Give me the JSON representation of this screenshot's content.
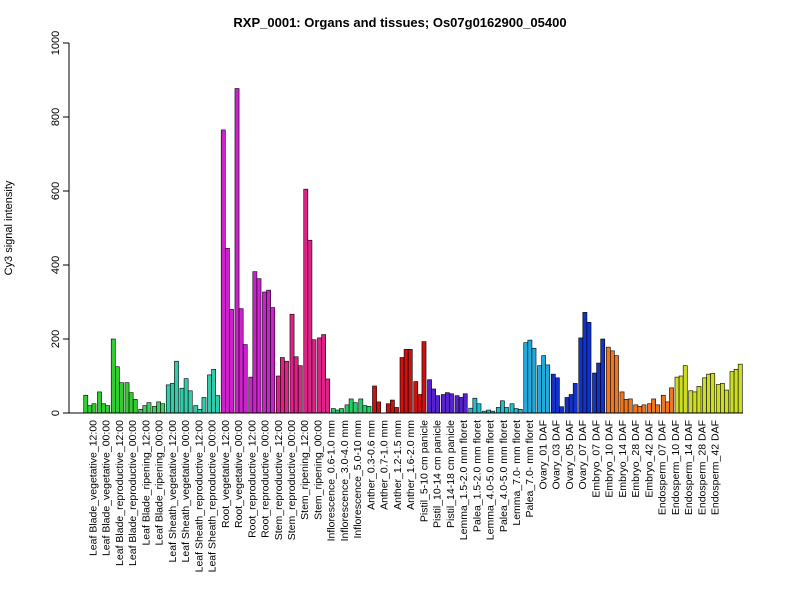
{
  "chart_data": {
    "type": "bar",
    "title": "RXP_0001: Organs and tissues; Os07g0162900_05400",
    "xlabel": "",
    "ylabel": "Cy3 signal intensity",
    "ylim": [
      0,
      1000
    ],
    "yticks": [
      0,
      200,
      400,
      600,
      800,
      1000
    ],
    "categories": [
      "Leaf Blade_vegetative_12:00",
      "Leaf Blade_vegetative_00:00",
      "Leaf Blade_reproductive_12:00",
      "Leaf Blade_reproductive_00:00",
      "Leaf Blade_ripening_12:00",
      "Leaf Blade_ripening_00:00",
      "Leaf Sheath_vegetative_12:00",
      "Leaf Sheath_vegetative_00:00",
      "Leaf Sheath_reproductive_12:00",
      "Leaf Sheath_reproductive_00:00",
      "Root_vegetative_12:00",
      "Root_vegetative_00:00",
      "Root_reproductive_12:00",
      "Root_reproductive_00:00",
      "Stem_reproductive_12:00",
      "Stem_reproductive_00:00",
      "Stem_ripening_12:00",
      "Stem_ripening_00:00",
      "Inflorescence_0.6-1.0 mm",
      "Inflorescence_3.0-4.0 mm",
      "Inflorescence_5.0-10 mm",
      "Anther_0.3-0.6 mm",
      "Anther_0.7-1.0 mm",
      "Anther_1.2-1.5 mm",
      "Anther_1.6-2.0 mm",
      "Pistil_5-10 cm panicle",
      "Pistil_10-14 cm panicle",
      "Pistil_14-18 cm panicle",
      "Lemma_1.5-2.0 mm floret",
      "Palea_1.5-2.0 mm floret",
      "Lemma_4.0-5.0 mm floret",
      "Palea_4.0-5.0 mm floret",
      "Lemma_7.0- mm floret",
      "Palea_7.0- mm floret",
      "Ovary_01 DAF",
      "Ovary_03 DAF",
      "Ovary_05 DAF",
      "Ovary_07 DAF",
      "Embryo_07 DAF",
      "Embryo_10 DAF",
      "Embryo_14 DAF",
      "Embryo_28 DAF",
      "Embryo_42 DAF",
      "Endosperm_07 DAF",
      "Endosperm_10 DAF",
      "Endosperm_14 DAF",
      "Endosperm_28 DAF",
      "Endosperm_42 DAF"
    ],
    "groups": [
      {
        "color": "#33cc33",
        "values": [
          48,
          20,
          25
        ]
      },
      {
        "color": "#33cc33",
        "values": [
          57,
          25,
          20
        ]
      },
      {
        "color": "#33cc33",
        "values": [
          200,
          125,
          82
        ]
      },
      {
        "color": "#33cc33",
        "values": [
          82,
          55,
          37
        ]
      },
      {
        "color": "#44cc66",
        "values": [
          10,
          20,
          28
        ]
      },
      {
        "color": "#44cc66",
        "values": [
          18,
          30,
          25
        ]
      },
      {
        "color": "#33ccaa",
        "values": [
          76,
          80,
          140
        ]
      },
      {
        "color": "#33ccaa",
        "values": [
          67,
          93,
          60
        ]
      },
      {
        "color": "#33ccaa",
        "values": [
          20,
          10,
          42
        ]
      },
      {
        "color": "#33ccaa",
        "values": [
          103,
          118,
          47
        ]
      },
      {
        "color": "#cc22cc",
        "values": [
          765,
          445,
          280
        ]
      },
      {
        "color": "#cc22cc",
        "values": [
          877,
          282,
          185
        ]
      },
      {
        "color": "#cc22cc",
        "values": [
          97,
          382,
          363
        ]
      },
      {
        "color": "#cc22cc",
        "values": [
          327,
          332,
          285
        ]
      },
      {
        "color": "#dd2288",
        "values": [
          100,
          150,
          140
        ]
      },
      {
        "color": "#dd2288",
        "values": [
          267,
          152,
          128
        ]
      },
      {
        "color": "#dd2288",
        "values": [
          605,
          467,
          198
        ]
      },
      {
        "color": "#dd2288",
        "values": [
          203,
          212,
          92
        ]
      },
      {
        "color": "#22cc66",
        "values": [
          12,
          8,
          12
        ]
      },
      {
        "color": "#22cc66",
        "values": [
          22,
          38,
          28
        ]
      },
      {
        "color": "#22cc66",
        "values": [
          38,
          20,
          18
        ]
      },
      {
        "color": "#cc1111",
        "values": [
          73,
          30,
          0
        ]
      },
      {
        "color": "#cc1111",
        "values": [
          25,
          35,
          15
        ]
      },
      {
        "color": "#cc1111",
        "values": [
          150,
          172,
          172
        ]
      },
      {
        "color": "#cc1111",
        "values": [
          85,
          50,
          193
        ]
      },
      {
        "color": "#5522cc",
        "values": [
          90,
          65,
          47
        ]
      },
      {
        "color": "#5522cc",
        "values": [
          50,
          55,
          52
        ]
      },
      {
        "color": "#5522cc",
        "values": [
          47,
          42,
          52
        ]
      },
      {
        "color": "#22bbcc",
        "values": [
          13,
          40,
          25
        ]
      },
      {
        "color": "#22bbcc",
        "values": [
          5,
          8,
          5
        ]
      },
      {
        "color": "#22bbcc",
        "values": [
          15,
          33,
          15
        ]
      },
      {
        "color": "#22bbcc",
        "values": [
          25,
          12,
          10
        ]
      },
      {
        "color": "#22aadd",
        "values": [
          190,
          197,
          175
        ]
      },
      {
        "color": "#22aadd",
        "values": [
          128,
          155,
          130
        ]
      },
      {
        "color": "#1133cc",
        "values": [
          105,
          95,
          17
        ]
      },
      {
        "color": "#1133cc",
        "values": [
          42,
          50,
          80
        ]
      },
      {
        "color": "#1133cc",
        "values": [
          203,
          272,
          245
        ]
      },
      {
        "color": "#1133cc",
        "values": [
          108,
          135,
          200
        ]
      },
      {
        "color": "#ee7722",
        "values": [
          178,
          168,
          155
        ]
      },
      {
        "color": "#ee7722",
        "values": [
          57,
          37,
          38
        ]
      },
      {
        "color": "#ee7722",
        "values": [
          22,
          18,
          22
        ]
      },
      {
        "color": "#ee7722",
        "values": [
          25,
          38,
          22
        ]
      },
      {
        "color": "#ee7722",
        "values": [
          48,
          30,
          68
        ]
      },
      {
        "color": "#ccdd22",
        "values": [
          97,
          100,
          128
        ]
      },
      {
        "color": "#ccdd22",
        "values": [
          60,
          57,
          72
        ]
      },
      {
        "color": "#ccdd22",
        "values": [
          95,
          105,
          107
        ]
      },
      {
        "color": "#ccdd22",
        "values": [
          77,
          80,
          62
        ]
      },
      {
        "color": "#ccdd22",
        "values": [
          112,
          118,
          132
        ]
      }
    ],
    "grid": false,
    "legend": "none"
  }
}
